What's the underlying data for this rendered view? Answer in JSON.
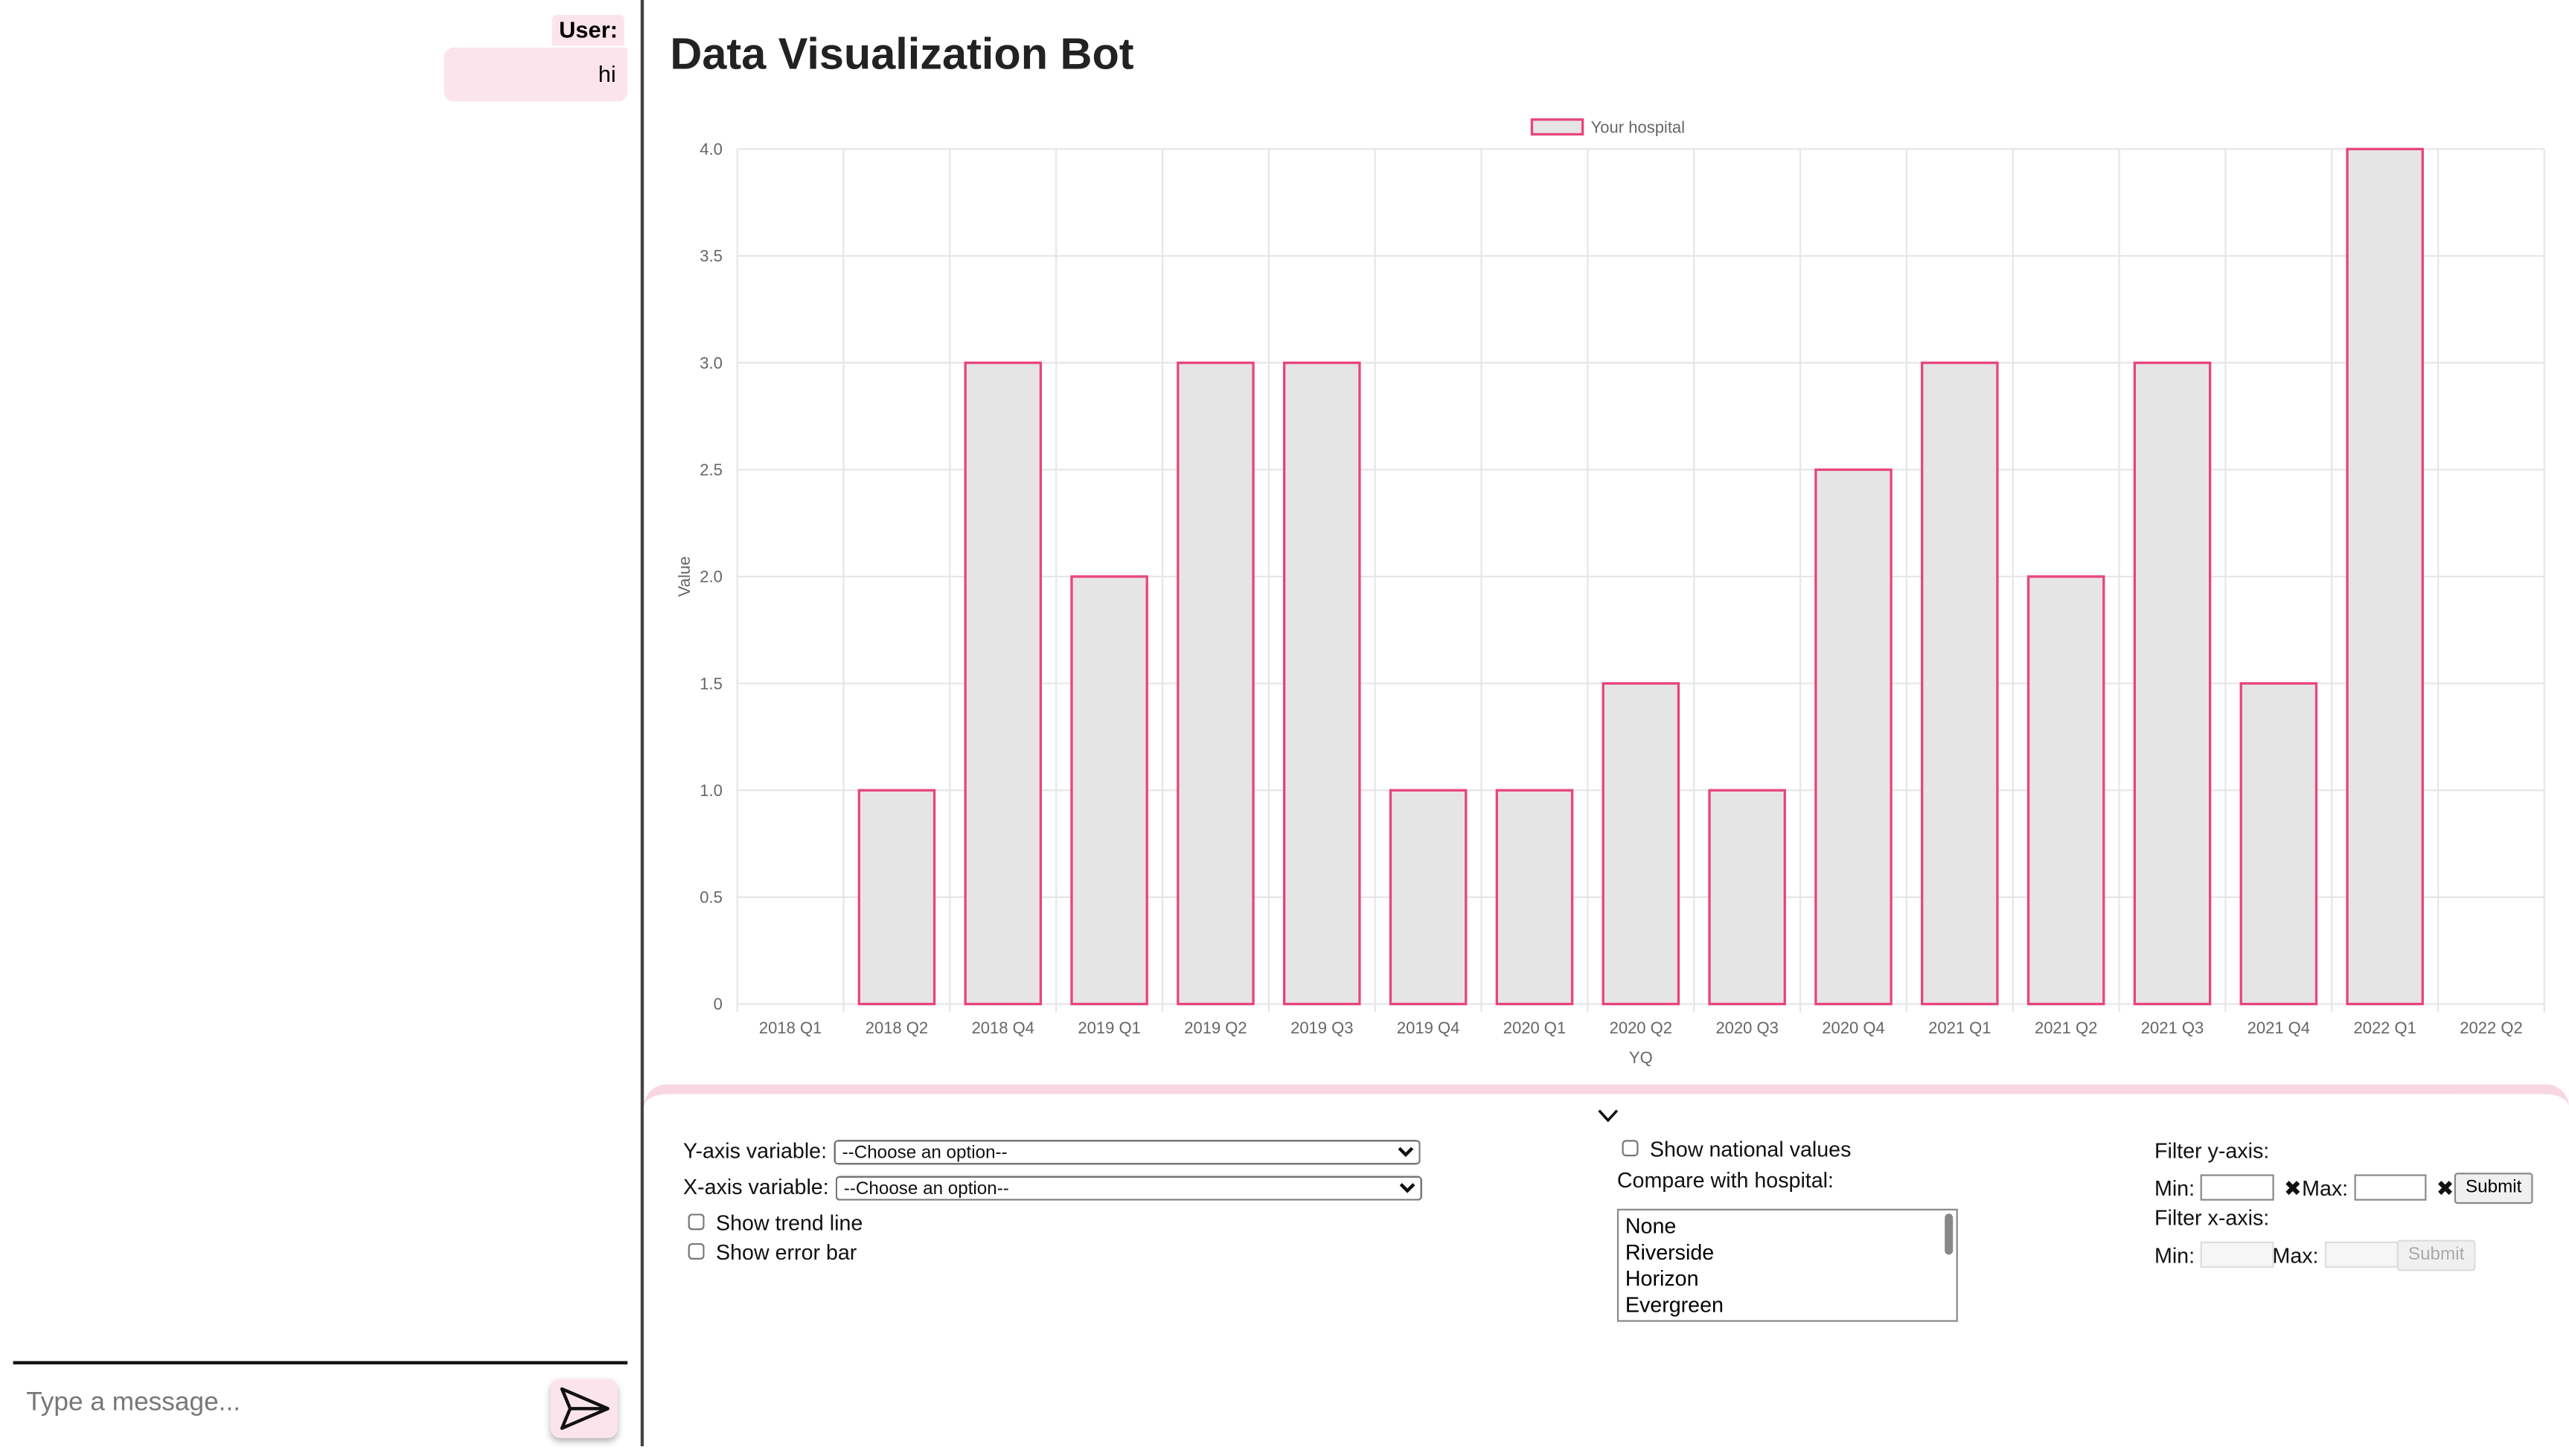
{
  "chat": {
    "sender": "User:",
    "message": "hi",
    "placeholder": "Type a message..."
  },
  "header": {
    "title": "Data Visualization Bot"
  },
  "chart_data": {
    "type": "bar",
    "legend": "Your hospital",
    "x_label": "YQ",
    "y_label": "Value",
    "categories": [
      "2018 Q1",
      "2018 Q2",
      "2018 Q4",
      "2019 Q1",
      "2019 Q2",
      "2019 Q3",
      "2019 Q4",
      "2020 Q1",
      "2020 Q2",
      "2020 Q3",
      "2020 Q4",
      "2021 Q1",
      "2021 Q2",
      "2021 Q3",
      "2021 Q4",
      "2022 Q1",
      "2022 Q2"
    ],
    "values": [
      0,
      1,
      3,
      2,
      3,
      3,
      1,
      1,
      1.5,
      1,
      2.5,
      3,
      2,
      3,
      1.5,
      4,
      0
    ],
    "color": "#e8457a",
    "fill": "#e5e5e5",
    "grid": true,
    "ylim": [
      0,
      4
    ],
    "yticks": [
      0,
      0.5,
      {
        "value": 1,
        "label": "1.0"
      },
      1.5,
      {
        "value": 2,
        "label": "2.0"
      },
      2.5,
      {
        "value": 3,
        "label": "3.0"
      },
      3.5,
      {
        "value": 4,
        "label": "4.0"
      }
    ]
  },
  "controls": {
    "y_axis": "Y-axis variable:",
    "x_axis": "X-axis variable:",
    "choose": "--Choose an option--",
    "trend": "Show trend line",
    "error": "Show error bar",
    "national": "Show national values",
    "compare": "Compare with hospital:",
    "hospitals": [
      "None",
      "Riverside",
      "Horizon",
      "Evergreen"
    ],
    "filter_y": "Filter y-axis:",
    "filter_x": "Filter x-axis:",
    "min": "Min:",
    "max": "Max:",
    "submit": "Submit"
  }
}
